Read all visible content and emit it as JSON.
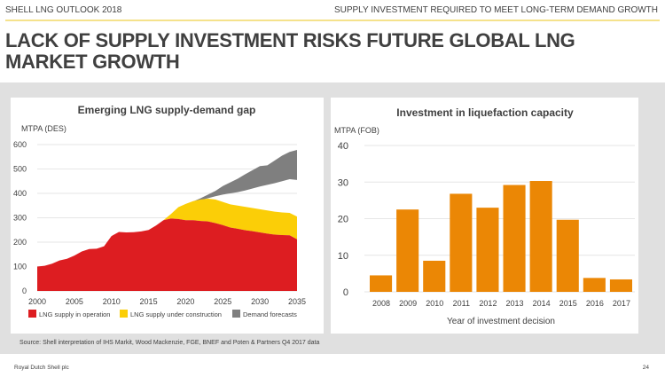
{
  "header": {
    "left": "SHELL LNG OUTLOOK 2018",
    "right": "SUPPLY INVESTMENT REQUIRED TO MEET LONG-TERM DEMAND GROWTH"
  },
  "title": "LACK OF SUPPLY INVESTMENT RISKS FUTURE GLOBAL LNG MARKET GROWTH",
  "source": "Source: Shell interpretation of IHS Markit, Wood Mackenzie, FGE, BNEF and Poten & Partners Q4 2017 data",
  "footer": {
    "left": "Royal Dutch Shell plc",
    "right": "24"
  },
  "colors": {
    "red": "#dd1d21",
    "yellow": "#fbce07",
    "gray": "#7f7f7f",
    "orange": "#eb8705"
  },
  "chart_data": [
    {
      "type": "area",
      "title": "Emerging LNG supply-demand gap",
      "ylabel": "MTPA (DES)",
      "ylim": [
        0,
        600
      ],
      "yticks": [
        0,
        100,
        200,
        300,
        400,
        500,
        600
      ],
      "xlim": [
        2000,
        2035
      ],
      "xticks": [
        2000,
        2005,
        2010,
        2015,
        2020,
        2025,
        2030,
        2035
      ],
      "legend": [
        "LNG supply in operation",
        "LNG supply under construction",
        "Demand forecasts"
      ],
      "legend_placement": "bottom",
      "operation": {
        "x": [
          2000,
          2001,
          2002,
          2003,
          2004,
          2005,
          2006,
          2007,
          2008,
          2009,
          2010,
          2011,
          2012,
          2013,
          2014,
          2015,
          2016,
          2017,
          2018,
          2019,
          2020,
          2021,
          2022,
          2023,
          2024,
          2025,
          2026,
          2027,
          2028,
          2029,
          2030,
          2031,
          2032,
          2033,
          2034,
          2035
        ],
        "y": [
          100,
          103,
          112,
          125,
          132,
          145,
          162,
          172,
          173,
          183,
          225,
          242,
          240,
          241,
          244,
          250,
          268,
          290,
          297,
          295,
          290,
          290,
          287,
          285,
          278,
          270,
          260,
          255,
          249,
          245,
          240,
          235,
          231,
          229,
          228,
          212
        ]
      },
      "total_supply": {
        "x": [
          2017,
          2018,
          2019,
          2020,
          2021,
          2022,
          2023,
          2024,
          2025,
          2026,
          2027,
          2028,
          2029,
          2030,
          2031,
          2032,
          2033,
          2034,
          2035
        ],
        "y": [
          290,
          315,
          343,
          357,
          368,
          375,
          378,
          375,
          365,
          355,
          350,
          345,
          340,
          335,
          330,
          325,
          322,
          320,
          305
        ]
      },
      "demand_low": {
        "x": [
          2019,
          2020,
          2021,
          2022,
          2023,
          2024,
          2025,
          2026,
          2027,
          2028,
          2029,
          2030,
          2031,
          2032,
          2033,
          2034,
          2035
        ],
        "y": [
          343,
          352,
          362,
          372,
          380,
          388,
          395,
          400,
          405,
          412,
          420,
          428,
          435,
          442,
          450,
          458,
          455
        ]
      },
      "demand_high": {
        "x": [
          2019,
          2020,
          2021,
          2022,
          2023,
          2024,
          2025,
          2026,
          2027,
          2028,
          2029,
          2030,
          2031,
          2032,
          2033,
          2034,
          2035
        ],
        "y": [
          343,
          355,
          367,
          380,
          395,
          410,
          430,
          445,
          460,
          478,
          495,
          512,
          515,
          535,
          555,
          570,
          578
        ]
      }
    },
    {
      "type": "bar",
      "title": "Investment in liquefaction capacity",
      "ylabel": "MTPA (FOB)",
      "xlabel": "Year of investment decision",
      "ylim": [
        0,
        40
      ],
      "yticks": [
        0,
        10,
        20,
        30,
        40
      ],
      "categories": [
        "2008",
        "2009",
        "2010",
        "2011",
        "2012",
        "2013",
        "2014",
        "2015",
        "2016",
        "2017"
      ],
      "values": [
        4.5,
        22.5,
        8.5,
        26.8,
        23,
        29.2,
        30.3,
        19.7,
        3.8,
        3.4
      ]
    }
  ]
}
